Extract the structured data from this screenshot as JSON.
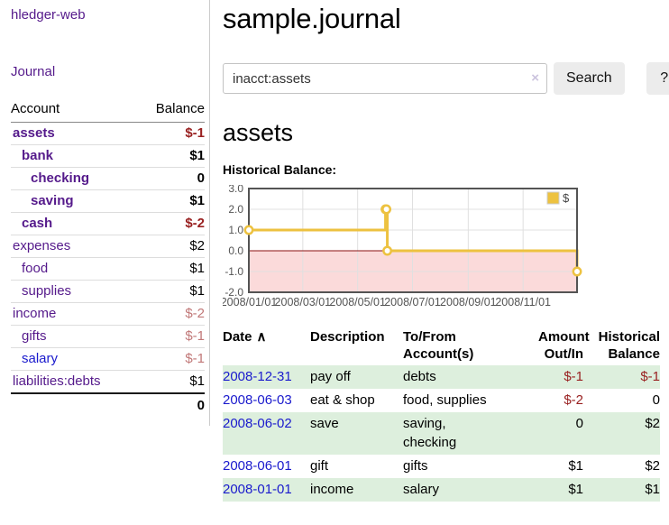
{
  "app": {
    "title": "hledger-web",
    "nav_journal": "Journal"
  },
  "sidebar": {
    "header": {
      "account": "Account",
      "balance": "Balance"
    },
    "accounts": [
      {
        "name": "assets",
        "indent": 1,
        "bold": true,
        "balance": "$-1",
        "tone": "neg-strong"
      },
      {
        "name": "bank",
        "indent": 2,
        "bold": true,
        "balance": "$1",
        "tone": ""
      },
      {
        "name": "checking",
        "indent": 3,
        "bold": true,
        "balance": "0",
        "tone": ""
      },
      {
        "name": "saving",
        "indent": 3,
        "bold": true,
        "balance": "$1",
        "tone": ""
      },
      {
        "name": "cash",
        "indent": 2,
        "bold": true,
        "balance": "$-2",
        "tone": "neg-strong"
      },
      {
        "name": "expenses",
        "indent": 1,
        "bold": false,
        "balance": "$2",
        "tone": ""
      },
      {
        "name": "food",
        "indent": 2,
        "bold": false,
        "balance": "$1",
        "tone": ""
      },
      {
        "name": "supplies",
        "indent": 2,
        "bold": false,
        "balance": "$1",
        "tone": ""
      },
      {
        "name": "income",
        "indent": 1,
        "bold": false,
        "balance": "$-2",
        "tone": "neg-weak"
      },
      {
        "name": "gifts",
        "indent": 2,
        "bold": false,
        "balance": "$-1",
        "tone": "neg-weak"
      },
      {
        "name": "salary",
        "indent": 2,
        "bold": false,
        "balance": "$-1",
        "tone": "neg-weak",
        "blue": true
      },
      {
        "name": "liabilities:debts",
        "indent": 1,
        "bold": false,
        "balance": "$1",
        "tone": ""
      }
    ],
    "total": "0"
  },
  "header": {
    "title": "sample.journal"
  },
  "search": {
    "value": "inacct:assets",
    "clear_icon": "×",
    "button_label": "Search",
    "help_label": "?"
  },
  "account_page": {
    "title": "assets",
    "chart_label": "Historical Balance:"
  },
  "chart_data": {
    "type": "line",
    "step": true,
    "title": "Historical Balance",
    "x_range": [
      "2008-01-01",
      "2008-12-31"
    ],
    "ylim": [
      -2,
      3
    ],
    "yticks": [
      {
        "v": 3,
        "label": "3.0"
      },
      {
        "v": 2,
        "label": "2.0"
      },
      {
        "v": 1,
        "label": "1.0"
      },
      {
        "v": 0,
        "label": "0.0"
      },
      {
        "v": -1,
        "label": "-1.0"
      },
      {
        "v": -2,
        "label": "-2.0"
      }
    ],
    "xticks": [
      {
        "date": "2008-01-01",
        "label": "2008/01/01"
      },
      {
        "date": "2008-03-01",
        "label": "2008/03/01"
      },
      {
        "date": "2008-05-01",
        "label": "2008/05/01"
      },
      {
        "date": "2008-07-01",
        "label": "2008/07/01"
      },
      {
        "date": "2008-09-01",
        "label": "2008/09/01"
      },
      {
        "date": "2008-11-01",
        "label": "2008/11/01"
      }
    ],
    "series": [
      {
        "name": "$",
        "color": "#edc240",
        "points": [
          {
            "x": "2008-01-01",
            "y": 1
          },
          {
            "x": "2008-06-01",
            "y": 2
          },
          {
            "x": "2008-06-02",
            "y": 2
          },
          {
            "x": "2008-06-03",
            "y": 0
          },
          {
            "x": "2008-12-31",
            "y": -1
          }
        ]
      }
    ],
    "legend": {
      "position": "top-right",
      "label": "$"
    },
    "grid": true,
    "colors": {
      "border": "#545454",
      "gridline": "#e0e0e0",
      "zero_line": "#8b1111",
      "negative_region": "#fbdada",
      "tick_text": "#545454"
    }
  },
  "register": {
    "columns": [
      "Date",
      "Description",
      "To/From\nAccount(s)",
      "Amount\nOut/In",
      "Historical\nBalance"
    ],
    "sort_icon": "∧",
    "rows": [
      {
        "date": "2008-12-31",
        "description": "pay off",
        "accounts": "debts",
        "amount": "$-1",
        "amount_neg": true,
        "balance": "$-1",
        "balance_neg": true,
        "shaded": true
      },
      {
        "date": "2008-06-03",
        "description": "eat & shop",
        "accounts": "food, supplies",
        "amount": "$-2",
        "amount_neg": true,
        "balance": "0",
        "balance_neg": false,
        "shaded": false
      },
      {
        "date": "2008-06-02",
        "description": "save",
        "accounts": "saving,\nchecking",
        "amount": "0",
        "amount_neg": false,
        "balance": "$2",
        "balance_neg": false,
        "shaded": true
      },
      {
        "date": "2008-06-01",
        "description": "gift",
        "accounts": "gifts",
        "amount": "$1",
        "amount_neg": false,
        "balance": "$2",
        "balance_neg": false,
        "shaded": false
      },
      {
        "date": "2008-01-01",
        "description": "income",
        "accounts": "salary",
        "amount": "$1",
        "amount_neg": false,
        "balance": "$1",
        "balance_neg": false,
        "shaded": true
      }
    ]
  },
  "colors": {
    "link_purple": "#551a8b",
    "link_blue": "#1a1acd",
    "negative_strong": "#992121",
    "negative_weak": "#c17878",
    "row_stripe_green": "#ddefdd",
    "series_gold": "#edc240",
    "button_gray": "#ececec"
  }
}
